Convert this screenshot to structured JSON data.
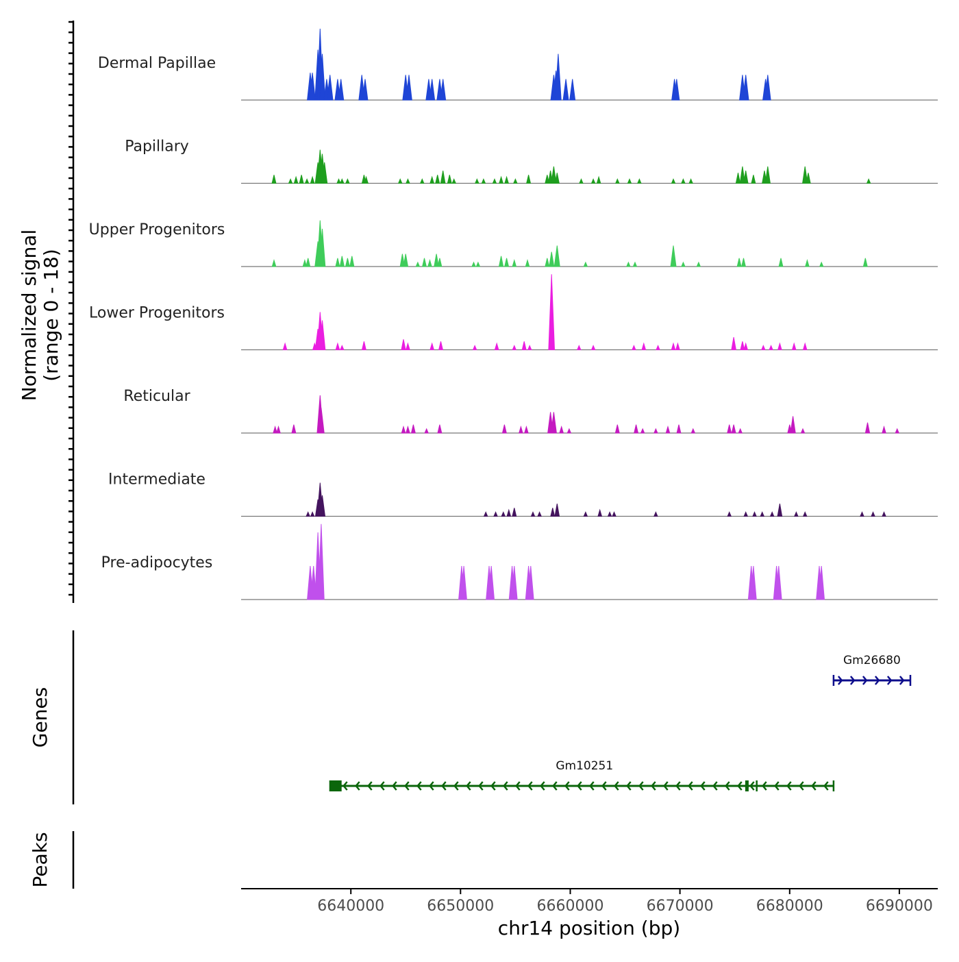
{
  "chart_data": {
    "type": "area",
    "title": "",
    "ylabel_line1": "Normalized signal",
    "ylabel_line2": "(range 0 - 18)",
    "ylim": [
      0,
      18
    ],
    "xlabel": "chr14 position (bp)",
    "xlim": [
      6630000,
      6693500
    ],
    "xticks": [
      6640000,
      6650000,
      6660000,
      6670000,
      6680000,
      6690000
    ],
    "xtick_labels": [
      "6640000",
      "6650000",
      "6660000",
      "6670000",
      "6680000",
      "6690000"
    ],
    "series": [
      {
        "name": "Dermal Papillae",
        "color": "#1f45d6",
        "peaks": [
          [
            6636300,
            6.5
          ],
          [
            6636500,
            6.5
          ],
          [
            6637000,
            12
          ],
          [
            6637200,
            17
          ],
          [
            6637400,
            11
          ],
          [
            6637800,
            5
          ],
          [
            6638100,
            6
          ],
          [
            6638800,
            5
          ],
          [
            6639100,
            5
          ],
          [
            6641000,
            6
          ],
          [
            6641300,
            5
          ],
          [
            6645000,
            6
          ],
          [
            6645300,
            6
          ],
          [
            6647100,
            5
          ],
          [
            6647400,
            5
          ],
          [
            6648100,
            5
          ],
          [
            6648400,
            5
          ],
          [
            6658500,
            6
          ],
          [
            6658700,
            7
          ],
          [
            6658900,
            11
          ],
          [
            6659600,
            5
          ],
          [
            6660200,
            5
          ],
          [
            6669500,
            5
          ],
          [
            6669700,
            5
          ],
          [
            6675700,
            6
          ],
          [
            6676000,
            6
          ],
          [
            6677800,
            5
          ],
          [
            6678000,
            6
          ]
        ]
      },
      {
        "name": "Papillary",
        "color": "#1f9e1f",
        "peaks": [
          [
            6633000,
            2
          ],
          [
            6634500,
            1
          ],
          [
            6635000,
            1.5
          ],
          [
            6635500,
            2
          ],
          [
            6636000,
            1
          ],
          [
            6636500,
            1.5
          ],
          [
            6637000,
            5
          ],
          [
            6637200,
            8
          ],
          [
            6637400,
            7
          ],
          [
            6637600,
            5
          ],
          [
            6638900,
            1
          ],
          [
            6639200,
            1
          ],
          [
            6639700,
            1
          ],
          [
            6641200,
            2
          ],
          [
            6641400,
            1.5
          ],
          [
            6644500,
            1
          ],
          [
            6645200,
            1
          ],
          [
            6646500,
            1
          ],
          [
            6647400,
            1.5
          ],
          [
            6647900,
            2
          ],
          [
            6648400,
            3
          ],
          [
            6649000,
            2
          ],
          [
            6649400,
            1
          ],
          [
            6651500,
            1
          ],
          [
            6652100,
            1
          ],
          [
            6653100,
            1
          ],
          [
            6653700,
            1.5
          ],
          [
            6654200,
            1.5
          ],
          [
            6655000,
            1
          ],
          [
            6656200,
            2
          ],
          [
            6657900,
            2
          ],
          [
            6658200,
            3
          ],
          [
            6658500,
            4
          ],
          [
            6658800,
            2.5
          ],
          [
            6661000,
            1
          ],
          [
            6662100,
            1
          ],
          [
            6662600,
            1.5
          ],
          [
            6664300,
            1
          ],
          [
            6665400,
            1
          ],
          [
            6666300,
            1
          ],
          [
            6669400,
            1
          ],
          [
            6670300,
            1
          ],
          [
            6671000,
            1
          ],
          [
            6675300,
            2.5
          ],
          [
            6675700,
            4
          ],
          [
            6676000,
            3
          ],
          [
            6676700,
            2
          ],
          [
            6677700,
            3
          ],
          [
            6678000,
            4
          ],
          [
            6681400,
            4
          ],
          [
            6681700,
            2.5
          ],
          [
            6687200,
            1
          ]
        ]
      },
      {
        "name": "Upper Progenitors",
        "color": "#3fcc5a",
        "peaks": [
          [
            6633000,
            1.5
          ],
          [
            6635800,
            1.5
          ],
          [
            6636100,
            2
          ],
          [
            6637000,
            6
          ],
          [
            6637200,
            11
          ],
          [
            6637400,
            9
          ],
          [
            6638800,
            2
          ],
          [
            6639200,
            2.5
          ],
          [
            6639700,
            2
          ],
          [
            6640100,
            2.5
          ],
          [
            6644700,
            3
          ],
          [
            6645000,
            3
          ],
          [
            6646100,
            1
          ],
          [
            6646700,
            2
          ],
          [
            6647200,
            1.5
          ],
          [
            6647800,
            3
          ],
          [
            6648100,
            2
          ],
          [
            6651200,
            1
          ],
          [
            6651600,
            1
          ],
          [
            6653700,
            2.5
          ],
          [
            6654200,
            2
          ],
          [
            6654900,
            1.5
          ],
          [
            6656100,
            1.5
          ],
          [
            6657900,
            2
          ],
          [
            6658300,
            3.5
          ],
          [
            6658800,
            5
          ],
          [
            6661400,
            1
          ],
          [
            6665300,
            1
          ],
          [
            6665900,
            1
          ],
          [
            6669400,
            5
          ],
          [
            6670300,
            1
          ],
          [
            6671700,
            1
          ],
          [
            6675400,
            2
          ],
          [
            6675800,
            2
          ],
          [
            6679200,
            2
          ],
          [
            6681600,
            1.5
          ],
          [
            6682900,
            1
          ],
          [
            6686900,
            2
          ]
        ]
      },
      {
        "name": "Lower Progenitors",
        "color": "#ea1ee0",
        "peaks": [
          [
            6634000,
            1.5
          ],
          [
            6636700,
            1.5
          ],
          [
            6637000,
            5
          ],
          [
            6637200,
            9
          ],
          [
            6637400,
            7
          ],
          [
            6638800,
            1.5
          ],
          [
            6639200,
            1
          ],
          [
            6641200,
            2
          ],
          [
            6644800,
            2.5
          ],
          [
            6645200,
            1.5
          ],
          [
            6647400,
            1.5
          ],
          [
            6648200,
            2
          ],
          [
            6651300,
            1
          ],
          [
            6653300,
            1.5
          ],
          [
            6654900,
            1
          ],
          [
            6655800,
            2
          ],
          [
            6656300,
            1
          ],
          [
            6658300,
            18
          ],
          [
            6660800,
            1
          ],
          [
            6662100,
            1
          ],
          [
            6665800,
            1
          ],
          [
            6666700,
            1.5
          ],
          [
            6668000,
            1
          ],
          [
            6669400,
            1.5
          ],
          [
            6669800,
            1.5
          ],
          [
            6674900,
            3
          ],
          [
            6675700,
            2
          ],
          [
            6676000,
            1.5
          ],
          [
            6677600,
            1
          ],
          [
            6678300,
            1
          ],
          [
            6679100,
            1.5
          ],
          [
            6680400,
            1.5
          ],
          [
            6681400,
            1.5
          ]
        ]
      },
      {
        "name": "Reticular",
        "color": "#c41ac0",
        "peaks": [
          [
            6633100,
            1.5
          ],
          [
            6633400,
            1.5
          ],
          [
            6634800,
            2
          ],
          [
            6637200,
            9
          ],
          [
            6637300,
            6
          ],
          [
            6644800,
            1.5
          ],
          [
            6645200,
            1.5
          ],
          [
            6645700,
            2
          ],
          [
            6646900,
            1
          ],
          [
            6648100,
            2
          ],
          [
            6654000,
            2
          ],
          [
            6655500,
            1.5
          ],
          [
            6656000,
            1.5
          ],
          [
            6658200,
            5
          ],
          [
            6658500,
            5
          ],
          [
            6659200,
            1.5
          ],
          [
            6659900,
            1
          ],
          [
            6664300,
            2
          ],
          [
            6666000,
            2
          ],
          [
            6666600,
            1
          ],
          [
            6667800,
            1
          ],
          [
            6668900,
            1.5
          ],
          [
            6669900,
            2
          ],
          [
            6671200,
            1
          ],
          [
            6674500,
            2
          ],
          [
            6674900,
            2
          ],
          [
            6675500,
            1
          ],
          [
            6680000,
            2
          ],
          [
            6680300,
            4
          ],
          [
            6681200,
            1
          ],
          [
            6687100,
            2.5
          ],
          [
            6688600,
            1.5
          ],
          [
            6689800,
            1
          ]
        ]
      },
      {
        "name": "Intermediate",
        "color": "#44145e",
        "peaks": [
          [
            6636100,
            1
          ],
          [
            6636500,
            1
          ],
          [
            6637000,
            4
          ],
          [
            6637200,
            8
          ],
          [
            6637400,
            5
          ],
          [
            6652300,
            1
          ],
          [
            6653200,
            1
          ],
          [
            6653900,
            1
          ],
          [
            6654400,
            1.5
          ],
          [
            6654900,
            2
          ],
          [
            6656600,
            1
          ],
          [
            6657200,
            1
          ],
          [
            6658400,
            2
          ],
          [
            6658800,
            3
          ],
          [
            6661400,
            1
          ],
          [
            6662700,
            1.5
          ],
          [
            6663600,
            1
          ],
          [
            6664000,
            1
          ],
          [
            6667800,
            1
          ],
          [
            6674500,
            1
          ],
          [
            6676000,
            1
          ],
          [
            6676800,
            1
          ],
          [
            6677500,
            1
          ],
          [
            6678400,
            1
          ],
          [
            6679100,
            3
          ],
          [
            6680600,
            1
          ],
          [
            6681400,
            1
          ],
          [
            6686600,
            1
          ],
          [
            6687600,
            1
          ],
          [
            6688600,
            1
          ]
        ]
      },
      {
        "name": "Pre-adipocytes",
        "color": "#c050ec",
        "peaks": [
          [
            6636300,
            8
          ],
          [
            6636600,
            8
          ],
          [
            6637000,
            16
          ],
          [
            6637300,
            18
          ],
          [
            6650100,
            8
          ],
          [
            6650300,
            8
          ],
          [
            6652600,
            8
          ],
          [
            6652800,
            8
          ],
          [
            6654700,
            8
          ],
          [
            6654900,
            8
          ],
          [
            6656200,
            8
          ],
          [
            6656400,
            8
          ],
          [
            6676500,
            8
          ],
          [
            6676700,
            8
          ],
          [
            6678800,
            8
          ],
          [
            6679000,
            8
          ],
          [
            6682700,
            8
          ],
          [
            6682900,
            8
          ]
        ]
      }
    ],
    "genes_label": "Genes",
    "genes": [
      {
        "name": "Gm26680",
        "start": 6684000,
        "end": 6691000,
        "strand": "+",
        "color": "#0d0d8c",
        "row": 0
      },
      {
        "name": "Gm10251",
        "start": 6638600,
        "end": 6684000,
        "strand": "-",
        "color": "#0b660b",
        "row": 1
      }
    ],
    "peaks_label": "Peaks"
  }
}
